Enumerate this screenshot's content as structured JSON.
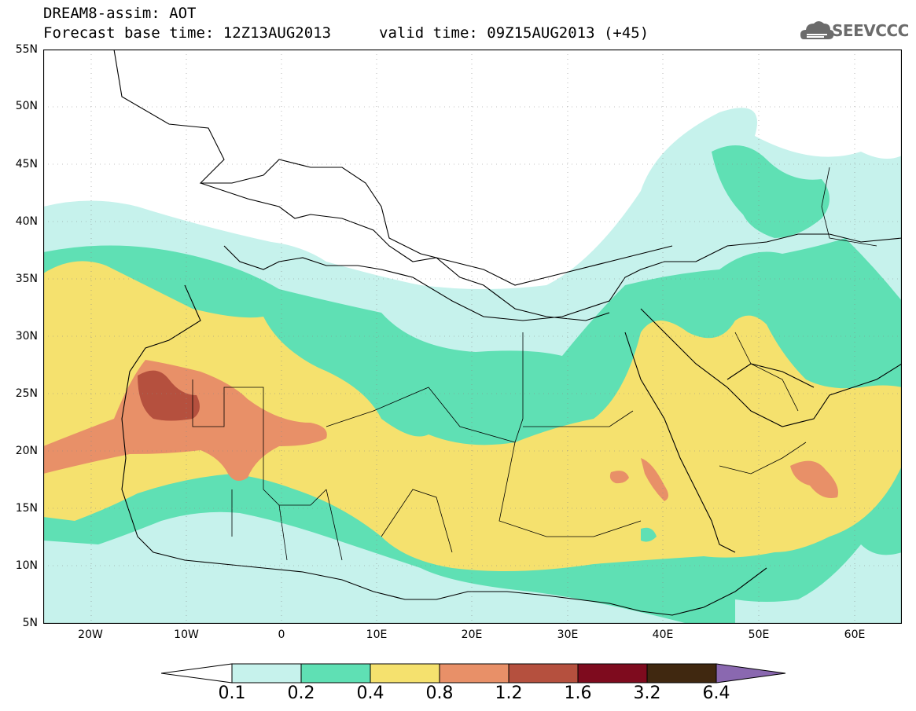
{
  "header": {
    "line1": "DREAM8-assim: AOT",
    "line2": "Forecast base time: 12Z13AUG2013",
    "valid": "valid time: 09Z15AUG2013 (+45)"
  },
  "logo": {
    "text": "SEEVCCC",
    "icon": "cloud-logo-icon"
  },
  "map": {
    "lat_labels": [
      "55N",
      "50N",
      "45N",
      "40N",
      "35N",
      "30N",
      "25N",
      "20N",
      "15N",
      "10N",
      "5N"
    ],
    "lon_labels": [
      "20W",
      "10W",
      "0",
      "10E",
      "20E",
      "30E",
      "40E",
      "50E",
      "60E"
    ],
    "extent": {
      "lon": [
        -25,
        65
      ],
      "lat": [
        5,
        55
      ]
    }
  },
  "legend": {
    "labels": [
      "0.1",
      "0.2",
      "0.4",
      "0.8",
      "1.2",
      "1.6",
      "3.2",
      "6.4"
    ],
    "colors": [
      "#ffffff",
      "#c6f2ec",
      "#5fe0b4",
      "#f5e16e",
      "#e89068",
      "#b5503e",
      "#7e0b1e",
      "#402810",
      "#8a68b0"
    ]
  }
}
